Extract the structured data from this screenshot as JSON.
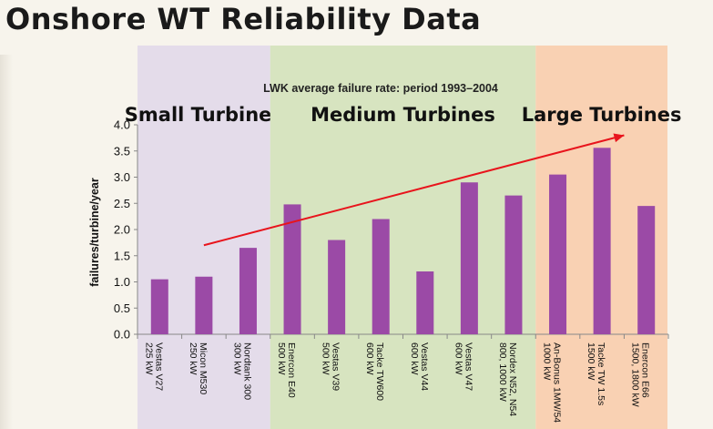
{
  "slide": {
    "title": "Onshore WT Reliability Data"
  },
  "chart_data": {
    "type": "bar",
    "title": "LWK average failure rate: period 1993–2004",
    "xlabel": "",
    "ylabel": "failures/turbine/year",
    "ylim": [
      0,
      4.0
    ],
    "yticks": [
      "0.0",
      "0.5",
      "1.0",
      "1.5",
      "2.0",
      "2.5",
      "3.0",
      "3.5",
      "4.0"
    ],
    "categories": [
      [
        "Vestas V27",
        "225 kW"
      ],
      [
        "Micon M530",
        "250 kW"
      ],
      [
        "Nordtank 300",
        "300 kW"
      ],
      [
        "Enercon E40",
        "500 kW"
      ],
      [
        "Vestas V39",
        "500 kW"
      ],
      [
        "Tacke TW600",
        "600 kW"
      ],
      [
        "Vestas V44",
        "600 kW"
      ],
      [
        "Vestas V47",
        "600 kW"
      ],
      [
        "Nordex N52, N54",
        "800, 1000 kW"
      ],
      [
        "An-Bonus 1MW/54",
        "1000 kW"
      ],
      [
        "Tacke TW 1.5s",
        "1500 kW"
      ],
      [
        "Enercon E66",
        "1500, 1800 kW"
      ]
    ],
    "values": [
      1.05,
      1.1,
      1.65,
      2.48,
      1.8,
      2.2,
      1.2,
      2.9,
      2.65,
      3.05,
      3.56,
      2.45
    ],
    "bar_color": "#9b4aa6",
    "grid": false,
    "regions": [
      {
        "label": "Small Turbines",
        "from": 0,
        "to": 2,
        "color": "#e4dcea"
      },
      {
        "label": "Medium Turbines",
        "from": 3,
        "to": 8,
        "color": "#d7e4c0"
      },
      {
        "label": "Large Turbines",
        "from": 9,
        "to": 11,
        "color": "#f9d1b3"
      }
    ],
    "trend_arrow": {
      "color": "#e8141c",
      "from": [
        1,
        1.7
      ],
      "to": [
        10.5,
        3.8
      ]
    }
  }
}
